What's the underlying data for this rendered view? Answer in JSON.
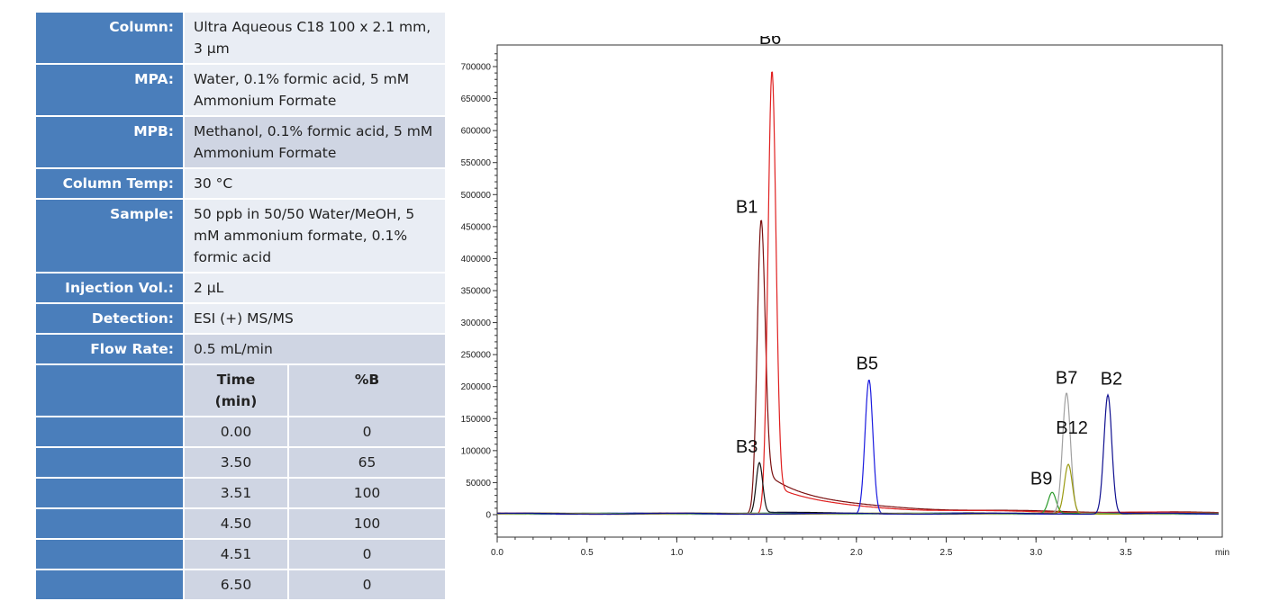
{
  "conditions": [
    {
      "label": "Column:",
      "value": "Ultra Aqueous C18 100 x 2.1 mm, 3 µm"
    },
    {
      "label": "MPA:",
      "value": "Water, 0.1% formic acid, 5 mM Ammonium Formate"
    },
    {
      "label": "MPB:",
      "value": "Methanol, 0.1% formic acid, 5 mM Ammonium Formate"
    },
    {
      "label": "Column Temp:",
      "value": "30 °C"
    },
    {
      "label": "Sample:",
      "value": "50 ppb in 50/50 Water/MeOH, 5 mM ammonium formate, 0.1% formic acid"
    },
    {
      "label": "Injection Vol.:",
      "value": "2 µL"
    },
    {
      "label": "Detection:",
      "value": "ESI (+) MS/MS"
    },
    {
      "label": "Flow Rate:",
      "value": "0.5 mL/min"
    }
  ],
  "gradient": {
    "headers": [
      "Time (min)",
      "%B"
    ],
    "rows": [
      [
        "0.00",
        "0"
      ],
      [
        "3.50",
        "65"
      ],
      [
        "3.51",
        "100"
      ],
      [
        "4.50",
        "100"
      ],
      [
        "4.51",
        "0"
      ],
      [
        "6.50",
        "0"
      ]
    ]
  },
  "chart_data": {
    "type": "line",
    "xlabel": "min",
    "xlim": [
      0,
      4.0
    ],
    "ylim": [
      -35000,
      730000
    ],
    "xticks": [
      "0.0",
      "0.5",
      "1.0",
      "1.5",
      "2.0",
      "2.5",
      "3.0",
      "3.5"
    ],
    "yticks": [
      "0",
      "50000",
      "100000",
      "150000",
      "200000",
      "250000",
      "300000",
      "350000",
      "400000",
      "450000",
      "500000",
      "550000",
      "600000",
      "650000",
      "700000"
    ],
    "grid": false,
    "peaks": [
      {
        "label": "B1",
        "rt": 1.47,
        "height": 460000,
        "color": "#7a1010"
      },
      {
        "label": "B6",
        "rt": 1.53,
        "height": 693000,
        "color": "#e02020"
      },
      {
        "label": "B3",
        "rt": 1.46,
        "height": 80000,
        "color": "#111111"
      },
      {
        "label": "B5",
        "rt": 2.07,
        "height": 210000,
        "color": "#1a1adf"
      },
      {
        "label": "B9",
        "rt": 3.09,
        "height": 33000,
        "color": "#2a9a2a"
      },
      {
        "label": "B7",
        "rt": 3.17,
        "height": 188000,
        "color": "#a0a0a0"
      },
      {
        "label": "B12",
        "rt": 3.18,
        "height": 77000,
        "color": "#9a9a10"
      },
      {
        "label": "B2",
        "rt": 3.4,
        "height": 186000,
        "color": "#101090"
      }
    ]
  }
}
